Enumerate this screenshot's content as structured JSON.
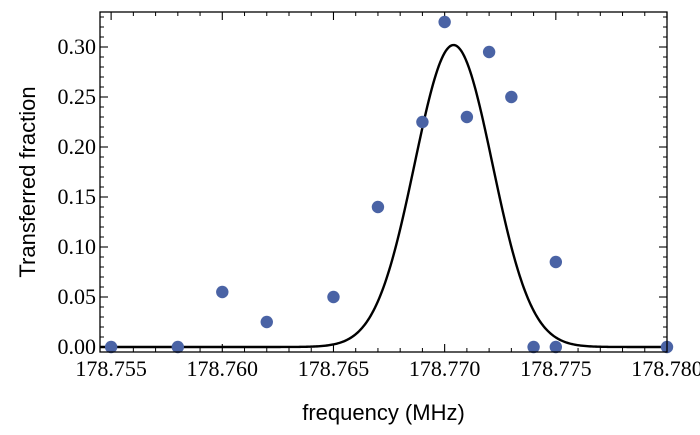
{
  "chart_data": {
    "type": "scatter",
    "title": "",
    "xlabel": "frequency (MHz)",
    "ylabel": "Transferred fraction",
    "xlim": [
      178.7545,
      178.78
    ],
    "ylim": [
      -0.005,
      0.335
    ],
    "x_ticks": [
      178.755,
      178.76,
      178.765,
      178.77,
      178.775,
      178.78
    ],
    "x_tick_labels": [
      "178.755",
      "178.760",
      "178.765",
      "178.770",
      "178.775",
      "178.780"
    ],
    "y_ticks": [
      0.0,
      0.05,
      0.1,
      0.15,
      0.2,
      0.25,
      0.3
    ],
    "y_tick_labels": [
      "0.00",
      "0.05",
      "0.10",
      "0.15",
      "0.20",
      "0.25",
      "0.30"
    ],
    "grid": false,
    "frame": "box with ticks on all sides",
    "marker_color": "#4a63a5",
    "line_color": "#000000",
    "series": [
      {
        "type": "scatter",
        "x": [
          178.755,
          178.758,
          178.76,
          178.762,
          178.765,
          178.767,
          178.769,
          178.77,
          178.771,
          178.772,
          178.773,
          178.774,
          178.775,
          178.775,
          178.78
        ],
        "y": [
          0.0,
          0.0,
          0.055,
          0.025,
          0.05,
          0.14,
          0.225,
          0.325,
          0.23,
          0.295,
          0.25,
          0.0,
          0.0,
          0.085,
          0.0
        ]
      },
      {
        "type": "line",
        "model": "gaussian",
        "center": 178.7704,
        "amplitude": 0.302,
        "sigma": 0.00175
      }
    ]
  }
}
